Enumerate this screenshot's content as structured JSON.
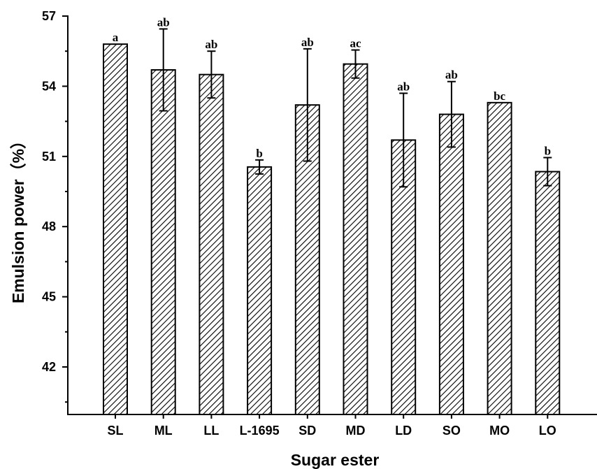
{
  "chart_data": {
    "type": "bar",
    "xlabel": "Sugar ester",
    "ylabel": "Emulsion power（%）",
    "ylim": [
      40,
      57
    ],
    "yticks": [
      42,
      45,
      48,
      51,
      54,
      57
    ],
    "grid": false,
    "bar_fill": "diagonal-hatch",
    "categories": [
      "SL",
      "ML",
      "LL",
      "L-1695",
      "SD",
      "MD",
      "LD",
      "SO",
      "MO",
      "LO"
    ],
    "series": [
      {
        "values": [
          55.8,
          54.7,
          54.5,
          50.55,
          53.2,
          54.95,
          51.7,
          52.8,
          53.3,
          50.35
        ],
        "error": [
          0,
          1.75,
          1.0,
          0.3,
          2.4,
          0.6,
          2.0,
          1.4,
          0,
          0.6
        ],
        "labels": [
          "a",
          "ab",
          "ab",
          "b",
          "ab",
          "ac",
          "ab",
          "ab",
          "bc",
          "b"
        ]
      }
    ]
  }
}
